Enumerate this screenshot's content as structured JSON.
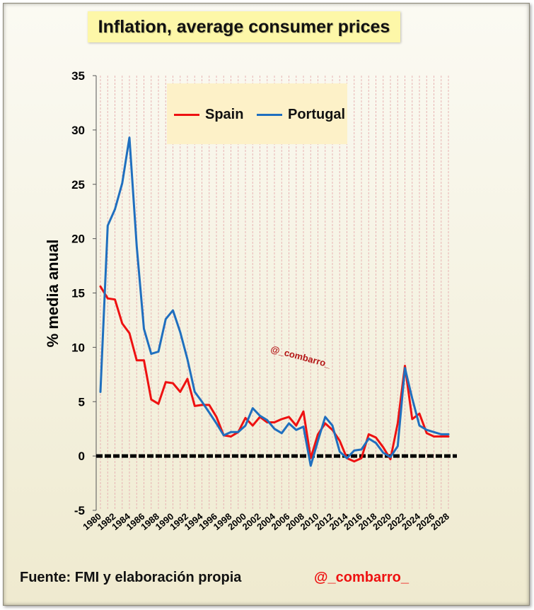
{
  "chart_data": {
    "type": "line",
    "title": "Inflation, average consumer prices",
    "xlabel": "",
    "ylabel": "% media anual",
    "ylim": [
      -5,
      35
    ],
    "yticks": [
      -5,
      0,
      5,
      10,
      15,
      20,
      25,
      30,
      35
    ],
    "xticks": [
      "1980",
      "1982",
      "1984",
      "1986",
      "1988",
      "1990",
      "1992",
      "1994",
      "1996",
      "1998",
      "2000",
      "2002",
      "2004",
      "2006",
      "2008",
      "2010",
      "2012",
      "2014",
      "2016",
      "2018",
      "2020",
      "2022",
      "2024",
      "2026",
      "2028"
    ],
    "x": [
      1980,
      1981,
      1982,
      1983,
      1984,
      1985,
      1986,
      1987,
      1988,
      1989,
      1990,
      1991,
      1992,
      1993,
      1994,
      1995,
      1996,
      1997,
      1998,
      1999,
      2000,
      2001,
      2002,
      2003,
      2004,
      2005,
      2006,
      2007,
      2008,
      2009,
      2010,
      2011,
      2012,
      2013,
      2014,
      2015,
      2016,
      2017,
      2018,
      2019,
      2020,
      2021,
      2022,
      2023,
      2024,
      2025,
      2026,
      2027,
      2028
    ],
    "grid": "vertical",
    "legend_position": "top-center",
    "series": [
      {
        "name": "Spain",
        "color": "#ee1111",
        "values": [
          15.6,
          14.5,
          14.4,
          12.2,
          11.3,
          8.8,
          8.8,
          5.2,
          4.8,
          6.8,
          6.7,
          5.9,
          7.1,
          4.6,
          4.7,
          4.7,
          3.6,
          1.9,
          1.8,
          2.2,
          3.5,
          2.8,
          3.6,
          3.1,
          3.1,
          3.4,
          3.6,
          2.8,
          4.1,
          -0.2,
          2.0,
          3.0,
          2.4,
          1.4,
          -0.2,
          -0.5,
          -0.2,
          2.0,
          1.7,
          0.8,
          -0.3,
          3.0,
          8.3,
          3.4,
          3.9,
          2.1,
          1.8,
          1.8,
          1.8
        ]
      },
      {
        "name": "Portugal",
        "color": "#1f6fbf",
        "values": [
          5.9,
          21.2,
          22.7,
          25.1,
          29.3,
          19.3,
          11.7,
          9.4,
          9.6,
          12.6,
          13.4,
          11.4,
          8.9,
          5.9,
          5.0,
          4.0,
          3.0,
          1.9,
          2.2,
          2.2,
          2.8,
          4.4,
          3.7,
          3.3,
          2.5,
          2.1,
          3.0,
          2.4,
          2.7,
          -0.9,
          1.4,
          3.6,
          2.8,
          0.4,
          -0.2,
          0.5,
          0.6,
          1.6,
          1.2,
          0.3,
          -0.1,
          0.9,
          8.1,
          5.3,
          2.8,
          2.4,
          2.2,
          2.0,
          2.0
        ]
      }
    ]
  },
  "footer": {
    "source": "Fuente: FMI y elaboración propia",
    "handle": "@_combarro_"
  },
  "watermark": "@_combarro_"
}
